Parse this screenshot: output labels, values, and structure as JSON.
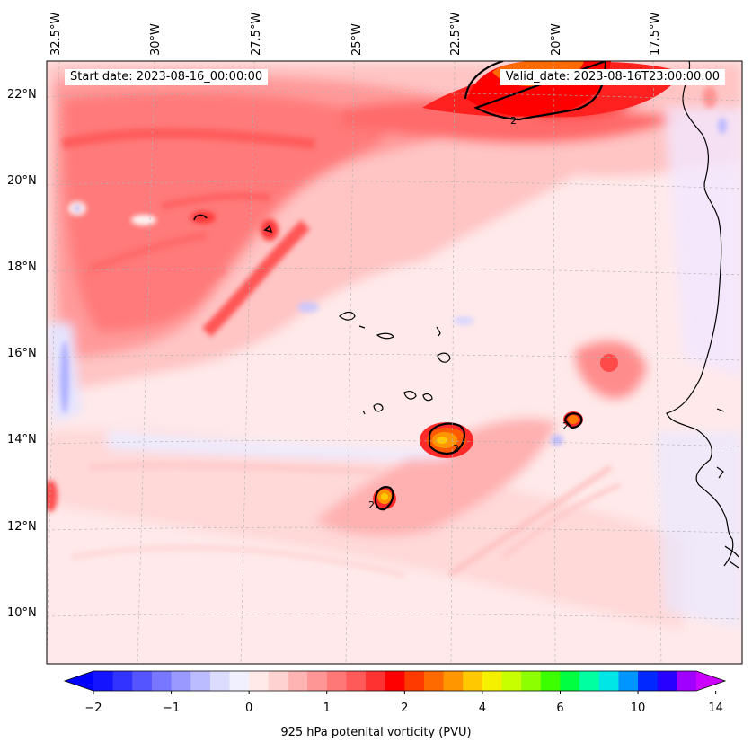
{
  "map": {
    "lon_labels": [
      "32.5°W",
      "30°W",
      "27.5°W",
      "25°W",
      "22.5°W",
      "20°W",
      "17.5°W"
    ],
    "lat_labels": [
      "22°N",
      "20°N",
      "18°N",
      "16°N",
      "14°N",
      "12°N",
      "10°N"
    ],
    "start_date": "Start date: 2023-08-16_00:00:00",
    "valid_date": "Valid_date: 2023-08-16T23:00:00.00",
    "contour_label": "2",
    "extent": {
      "lon_min": -33.0,
      "lon_max": -15.5,
      "lat_min": 8.9,
      "lat_max": 22.7
    }
  },
  "colorbar": {
    "label": "925 hPa potenital vorticity (PVU)",
    "ticks": [
      "−2",
      "−1",
      "0",
      "1",
      "2",
      "4",
      "6",
      "10",
      "14"
    ],
    "colors": [
      "#1414ff",
      "#3333ff",
      "#5555ff",
      "#7777ff",
      "#9999ff",
      "#bbbbff",
      "#dcdcff",
      "#f0f0ff",
      "#ffe9e9",
      "#ffd2d2",
      "#ffb4b4",
      "#ff9696",
      "#ff7878",
      "#ff5a5a",
      "#ff3232",
      "#ff0000",
      "#ff3a00",
      "#ff6a00",
      "#ff9600",
      "#ffc800",
      "#f5f000",
      "#c8ff00",
      "#8cff00",
      "#3cff00",
      "#00ff40",
      "#00ffa0",
      "#00e6e6",
      "#0096ff",
      "#0028ff",
      "#2800ff",
      "#a000ff"
    ],
    "under_color": "#0000ff",
    "over_color": "#cc00ff"
  },
  "colors": {
    "background": "#ffe9ea",
    "weak_positive": "#ffd2d2",
    "moderate": "#ff7878",
    "strong": "#ff3232",
    "max": "#ff0000",
    "orange": "#ff9600",
    "yellow": "#ffc800",
    "negative": "#dcdcff",
    "coast": "#000000"
  }
}
